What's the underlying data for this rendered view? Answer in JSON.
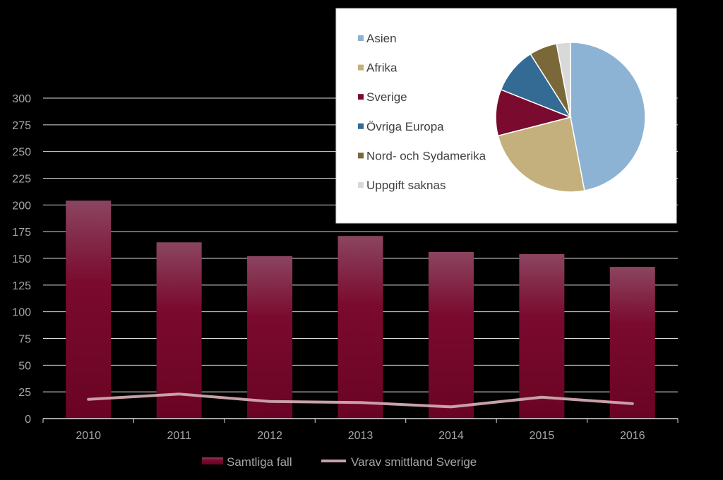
{
  "chart_data": [
    {
      "type": "bar",
      "categories": [
        "2010",
        "2011",
        "2012",
        "2013",
        "2014",
        "2015",
        "2016"
      ],
      "series": [
        {
          "name": "Samtliga fall",
          "type": "bar",
          "values": [
            204,
            165,
            152,
            171,
            156,
            154,
            142
          ],
          "color": "#7a0a2e"
        },
        {
          "name": "Varav smittland Sverige",
          "type": "line",
          "values": [
            18,
            23,
            16,
            15,
            11,
            20,
            14
          ],
          "color": "#c9a0a8"
        }
      ],
      "yticks": [
        "0",
        "25",
        "50",
        "75",
        "100",
        "125",
        "150",
        "175",
        "200",
        "225",
        "250",
        "275",
        "300"
      ],
      "ylim": [
        0,
        300
      ],
      "grid": true,
      "legend_position": "bottom"
    },
    {
      "type": "pie",
      "categories": [
        "Asien",
        "Afrika",
        "Sverige",
        "Övriga Europa",
        "Nord- och Sydamerika",
        "Uppgift saknas"
      ],
      "values": [
        47,
        24,
        10,
        10,
        6,
        3
      ],
      "colors": [
        "#8db3d4",
        "#c4b07c",
        "#7a0a2e",
        "#336b95",
        "#7a6838",
        "#d9d9d9"
      ],
      "legend_position": "left"
    }
  ]
}
